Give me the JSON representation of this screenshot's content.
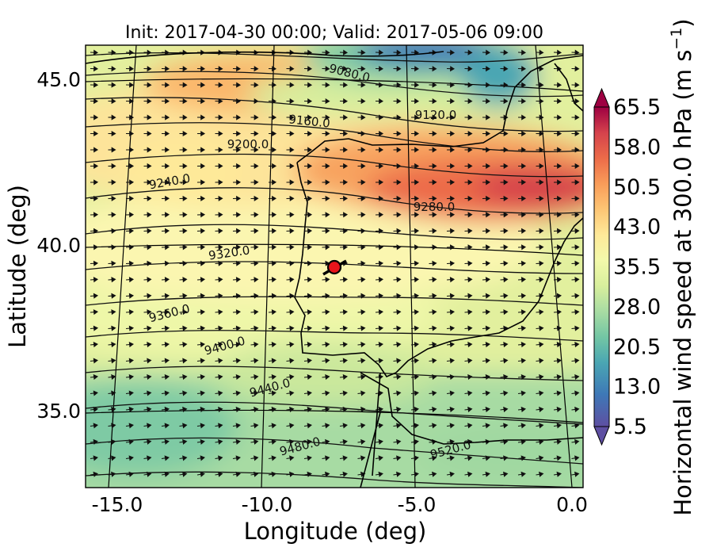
{
  "title": "Init: 2017-04-30 00:00; Valid: 2017-05-06 09:00",
  "x_axis": {
    "label": "Longitude (deg)",
    "ticks": [
      "-15.0",
      "-10.0",
      "-5.0",
      "0.0"
    ]
  },
  "y_axis": {
    "label": "Latitude (deg)",
    "ticks": [
      "45.0",
      "40.0",
      "35.0"
    ]
  },
  "colorbar": {
    "label_main": "Horizontal wind speed at 300.0 hPa (m s",
    "label_sup": "−1",
    "label_end": ")",
    "ticks": [
      "65.5",
      "58.0",
      "50.5",
      "43.0",
      "35.5",
      "28.0",
      "20.5",
      "13.0",
      "5.5"
    ],
    "colors": [
      "#5e4fa2",
      "#3e78b7",
      "#4aa6b3",
      "#73c6a4",
      "#a8dca3",
      "#d8ef9d",
      "#f3f9ab",
      "#fee999",
      "#fdc574",
      "#f99c59",
      "#ec6b49",
      "#d5424c",
      "#9e0142"
    ]
  },
  "contour_labels": [
    "9080.0",
    "9120.0",
    "9160.0",
    "9200.0",
    "9240.0",
    "9280.0",
    "9320.0",
    "9360.0",
    "9400.0",
    "9440.0",
    "9480.0",
    "9520.0"
  ],
  "marker": {
    "lon": -7.6,
    "lat": 39.3,
    "color": "#e8151b"
  }
}
